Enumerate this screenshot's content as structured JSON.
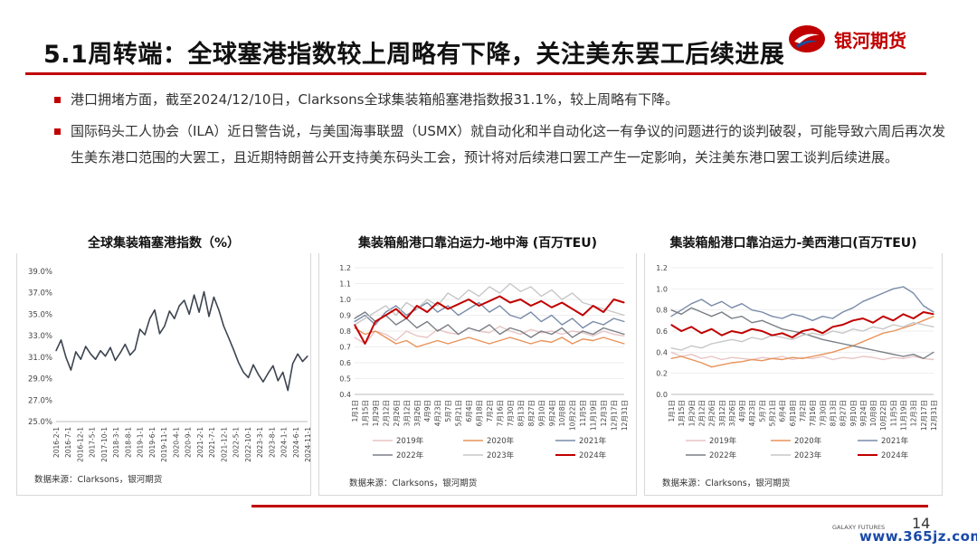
{
  "header": {
    "title": "5.1周转端：全球塞港指数较上周略有下降，关注美东罢工后续进展",
    "logo_text": "银河期货"
  },
  "bullets": [
    "港口拥堵方面，截至2024/12/10日，Clarksons全球集装箱船塞港指数报31.1%，较上周略有下降。",
    "国际码头工人协会（ILA）近日警告说，与美国海事联盟（USMX）就自动化和半自动化这一有争议的问题进行的谈判破裂，可能导致六周后再次发生美东港口范围的大罢工，且近期特朗普公开支持美东码头工会，预计将对后续港口罢工产生一定影响，关注美东港口罢工谈判后续进展。"
  ],
  "colors": {
    "brand_red": "#c00000",
    "logo_blue": "#1f4e9c"
  },
  "icons": {
    "logo": "galaxy-futures-logo-icon",
    "bullet": "square-bullet-icon"
  },
  "chart_data": [
    {
      "type": "line",
      "title": "全球集装箱塞港指数（%）",
      "source": "数据来源：Clarksons，银河期货",
      "ylim": [
        25,
        39
      ],
      "yticks": [
        "39.0%",
        "37.0%",
        "35.0%",
        "33.0%",
        "31.0%",
        "29.0%",
        "27.0%",
        "25.0%"
      ],
      "ytick_values": [
        39,
        37,
        35,
        33,
        31,
        29,
        27,
        25
      ],
      "xticks": [
        "2016-2-1",
        "2016-7-1",
        "2016-12-1",
        "2017-5-1",
        "2017-10-1",
        "2018-3-1",
        "2018-8-1",
        "2019-1-1",
        "2019-6-1",
        "2019-11-1",
        "2020-4-1",
        "2020-9-1",
        "2021-2-1",
        "2021-7-1",
        "2021-12-1",
        "2022-5-1",
        "2022-10-1",
        "2023-3-1",
        "2023-8-1",
        "2024-1-1",
        "2024-6-1",
        "2024-11-1"
      ],
      "series": [
        {
          "color": "#3d4450",
          "values": [
            31.6,
            32.6,
            31.0,
            29.8,
            31.5,
            30.8,
            32.0,
            31.3,
            30.8,
            31.6,
            31.1,
            31.9,
            30.7,
            31.4,
            32.2,
            31.2,
            31.7,
            33.6,
            33.1,
            34.6,
            35.4,
            33.2,
            33.9,
            35.3,
            34.6,
            35.8,
            36.3,
            35.0,
            36.8,
            35.2,
            37.1,
            34.8,
            36.6,
            35.4,
            33.9,
            32.8,
            31.7,
            30.5,
            29.6,
            29.1,
            30.3,
            29.4,
            28.7,
            29.5,
            30.2,
            28.8,
            29.6,
            27.9,
            30.4,
            31.3,
            30.6,
            31.1
          ]
        }
      ]
    },
    {
      "type": "line",
      "title": "集装箱船港口靠泊运力-地中海 (百万TEU)",
      "source": "数据来源：Clarksons，银河期货",
      "ylim": [
        0.4,
        1.2
      ],
      "yticks": [
        "1.2",
        "1.1",
        "1.0",
        "0.9",
        "0.8",
        "0.7",
        "0.6",
        "0.5",
        "0.4"
      ],
      "ytick_values": [
        1.2,
        1.1,
        1.0,
        0.9,
        0.8,
        0.7,
        0.6,
        0.5,
        0.4
      ],
      "xticks": [
        "1月1日",
        "1月15日",
        "1月29日",
        "2月12日",
        "2月26日",
        "3月12日",
        "3月26日",
        "4月9日",
        "4月23日",
        "5月7日",
        "5月21日",
        "6月4日",
        "6月18日",
        "7月2日",
        "7月16日",
        "7月30日",
        "8月13日",
        "8月27日",
        "9月10日",
        "9月24日",
        "10月8日",
        "10月22日",
        "11月5日",
        "11月19日",
        "12月3日",
        "12月17日",
        "12月31日"
      ],
      "series": [
        {
          "name": "2019年",
          "color": "#e8c4c4",
          "values": [
            0.76,
            0.72,
            0.8,
            0.78,
            0.74,
            0.8,
            0.77,
            0.76,
            0.81,
            0.79,
            0.78,
            0.82,
            0.8,
            0.79,
            0.83,
            0.8,
            0.78,
            0.81,
            0.79,
            0.8,
            0.78,
            0.8,
            0.79,
            0.77,
            0.8,
            0.78,
            0.77
          ]
        },
        {
          "name": "2020年",
          "color": "#e8935a",
          "values": [
            0.82,
            0.78,
            0.8,
            0.76,
            0.72,
            0.74,
            0.7,
            0.72,
            0.74,
            0.72,
            0.74,
            0.76,
            0.74,
            0.72,
            0.74,
            0.76,
            0.74,
            0.72,
            0.74,
            0.73,
            0.76,
            0.72,
            0.75,
            0.74,
            0.76,
            0.74,
            0.72
          ]
        },
        {
          "name": "2021年",
          "color": "#7a8ba8",
          "values": [
            0.86,
            0.9,
            0.84,
            0.92,
            0.96,
            0.9,
            0.94,
            0.98,
            0.92,
            0.96,
            0.9,
            0.94,
            0.98,
            0.92,
            0.96,
            0.9,
            0.88,
            0.92,
            0.86,
            0.9,
            0.84,
            0.88,
            0.82,
            0.86,
            0.84,
            0.88,
            0.86
          ]
        },
        {
          "name": "2022年",
          "color": "#7a7f86",
          "values": [
            0.88,
            0.92,
            0.86,
            0.9,
            0.84,
            0.88,
            0.82,
            0.86,
            0.8,
            0.84,
            0.78,
            0.82,
            0.8,
            0.84,
            0.78,
            0.82,
            0.8,
            0.76,
            0.8,
            0.78,
            0.82,
            0.76,
            0.8,
            0.78,
            0.82,
            0.8,
            0.78
          ]
        },
        {
          "name": "2023年",
          "color": "#c7c7c7",
          "values": [
            0.84,
            0.88,
            0.92,
            0.96,
            0.9,
            0.98,
            0.94,
            1.0,
            0.96,
            1.04,
            1.0,
            1.06,
            1.02,
            1.08,
            1.04,
            1.1,
            1.05,
            1.08,
            1.02,
            1.06,
            1.0,
            1.04,
            0.98,
            0.96,
            0.94,
            0.92,
            0.9
          ]
        },
        {
          "name": "2024年",
          "color": "#c00000",
          "values": [
            0.84,
            0.72,
            0.86,
            0.9,
            0.94,
            0.88,
            0.96,
            0.92,
            0.98,
            0.94,
            0.97,
            1.0,
            0.96,
            0.99,
            1.02,
            0.98,
            1.0,
            0.96,
            0.99,
            0.95,
            0.98,
            0.94,
            0.9,
            0.96,
            0.92,
            1.0,
            0.98
          ]
        }
      ]
    },
    {
      "type": "line",
      "title": "集装箱船港口靠泊运力-美西港口(百万TEU)",
      "source": "数据来源：Clarksons，银河期货",
      "ylim": [
        0.0,
        1.2
      ],
      "yticks": [
        "1.2",
        "1.0",
        "0.8",
        "0.6",
        "0.4",
        "0.2",
        "0.0"
      ],
      "ytick_values": [
        1.2,
        1.0,
        0.8,
        0.6,
        0.4,
        0.2,
        0.0
      ],
      "xticks": [
        "1月1日",
        "1月15日",
        "1月29日",
        "2月12日",
        "2月26日",
        "3月12日",
        "3月26日",
        "4月9日",
        "4月23日",
        "5月7日",
        "5月21日",
        "6月4日",
        "6月18日",
        "7月2日",
        "7月16日",
        "7月30日",
        "8月13日",
        "8月27日",
        "9月10日",
        "9月24日",
        "10月8日",
        "10月22日",
        "11月5日",
        "11月19日",
        "12月3日",
        "12月17日",
        "12月31日"
      ],
      "series": [
        {
          "name": "2019年",
          "color": "#e8c4c4",
          "values": [
            0.4,
            0.36,
            0.38,
            0.34,
            0.36,
            0.33,
            0.35,
            0.34,
            0.33,
            0.35,
            0.34,
            0.36,
            0.33,
            0.35,
            0.34,
            0.36,
            0.33,
            0.35,
            0.34,
            0.36,
            0.35,
            0.33,
            0.35,
            0.34,
            0.36,
            0.34,
            0.33
          ]
        },
        {
          "name": "2020年",
          "color": "#e8935a",
          "values": [
            0.34,
            0.36,
            0.33,
            0.3,
            0.26,
            0.28,
            0.3,
            0.31,
            0.33,
            0.32,
            0.34,
            0.33,
            0.35,
            0.34,
            0.36,
            0.38,
            0.4,
            0.43,
            0.46,
            0.5,
            0.54,
            0.58,
            0.6,
            0.63,
            0.66,
            0.7,
            0.74
          ]
        },
        {
          "name": "2021年",
          "color": "#7a8ba8",
          "values": [
            0.74,
            0.8,
            0.86,
            0.9,
            0.84,
            0.88,
            0.82,
            0.86,
            0.8,
            0.78,
            0.74,
            0.72,
            0.76,
            0.74,
            0.7,
            0.74,
            0.72,
            0.78,
            0.82,
            0.88,
            0.92,
            0.96,
            1.0,
            1.02,
            0.96,
            0.84,
            0.78
          ]
        },
        {
          "name": "2022年",
          "color": "#7a7f86",
          "values": [
            0.8,
            0.76,
            0.82,
            0.78,
            0.74,
            0.78,
            0.72,
            0.74,
            0.68,
            0.7,
            0.66,
            0.62,
            0.6,
            0.58,
            0.55,
            0.52,
            0.5,
            0.48,
            0.46,
            0.44,
            0.42,
            0.4,
            0.38,
            0.36,
            0.38,
            0.34,
            0.4
          ]
        },
        {
          "name": "2023年",
          "color": "#c7c7c7",
          "values": [
            0.44,
            0.42,
            0.46,
            0.44,
            0.48,
            0.5,
            0.52,
            0.5,
            0.54,
            0.52,
            0.56,
            0.54,
            0.52,
            0.56,
            0.58,
            0.56,
            0.6,
            0.58,
            0.62,
            0.6,
            0.64,
            0.62,
            0.66,
            0.64,
            0.68,
            0.66,
            0.64
          ]
        },
        {
          "name": "2024年",
          "color": "#c00000",
          "values": [
            0.66,
            0.6,
            0.64,
            0.58,
            0.62,
            0.56,
            0.6,
            0.58,
            0.62,
            0.6,
            0.56,
            0.58,
            0.54,
            0.6,
            0.62,
            0.58,
            0.64,
            0.66,
            0.7,
            0.72,
            0.68,
            0.74,
            0.7,
            0.76,
            0.72,
            0.78,
            0.76
          ]
        }
      ]
    }
  ],
  "footer": {
    "brand": "GALAXY FUTURES",
    "page_number": "14",
    "watermark": "www.365jz.com"
  }
}
